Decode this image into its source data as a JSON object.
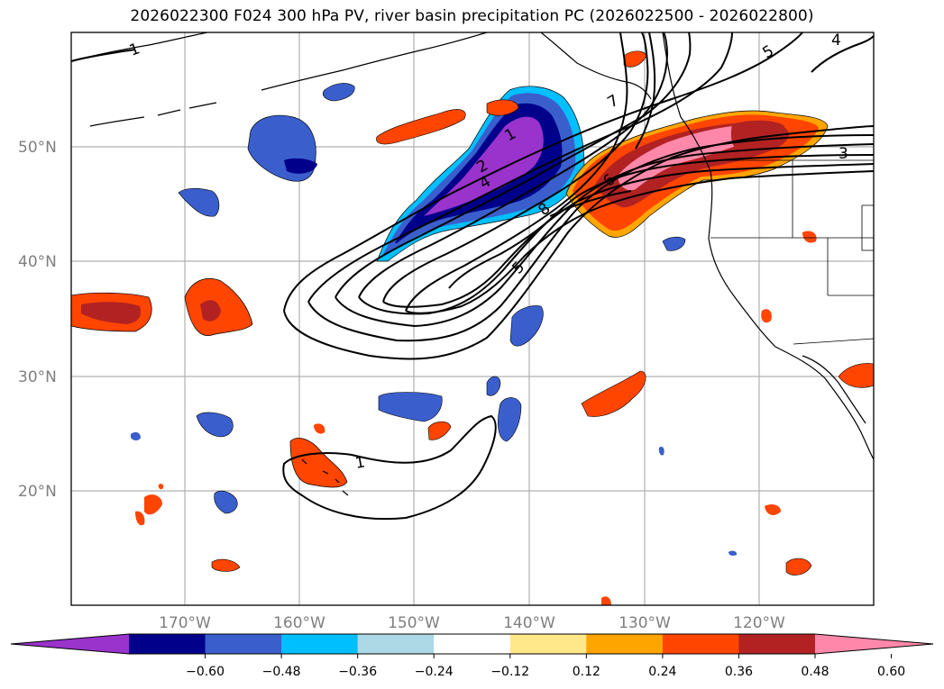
{
  "title": "2026022300 F024 300 hPa PV, river basin precipitation PC (2026022500 - 2026022800)",
  "lat_labels": [
    "50°N",
    "40°N",
    "30°N",
    "20°N"
  ],
  "lon_labels": [
    "170°W",
    "160°W",
    "150°W",
    "140°W",
    "130°W",
    "120°W"
  ],
  "colorbar": {
    "ticks": [
      "−0.60",
      "−0.48",
      "−0.36",
      "−0.24",
      "−0.12",
      "0.12",
      "0.24",
      "0.36",
      "0.48",
      "0.60"
    ],
    "colors": [
      "#9933cc",
      "#00008b",
      "#3a5fcd",
      "#00bfff",
      "#add8e6",
      "#ffffff",
      "#ffe88a",
      "#ffa500",
      "#ff4500",
      "#b22222",
      "#ff88aa"
    ]
  },
  "contour_labels": [
    "1",
    "5",
    "4",
    "3",
    "1",
    "2",
    "4",
    "8",
    "6",
    "7",
    "5",
    "1"
  ]
}
